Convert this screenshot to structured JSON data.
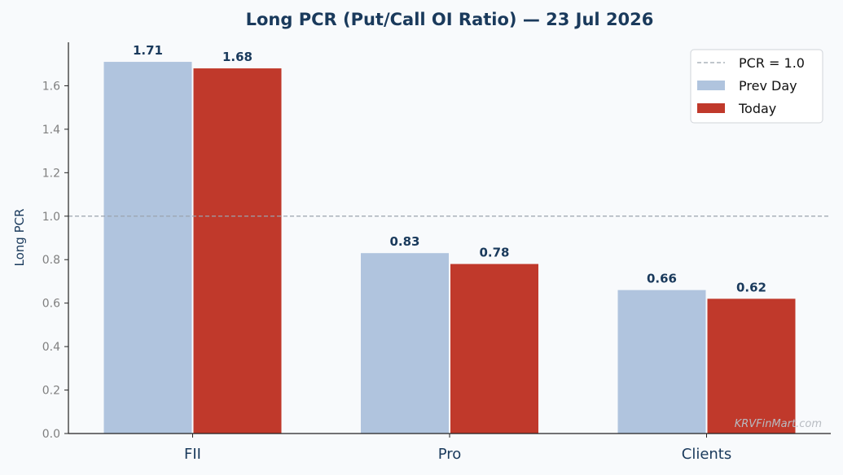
{
  "colors": {
    "background": "#f8fafc",
    "prev_day": "#b0c4de",
    "today": "#c0392b",
    "title": "#1a3a5c",
    "value_label": "#1a3a5c",
    "tick": "#7f7f7f",
    "axis": "#222222",
    "reference_line": "#9aa3ad",
    "watermark": "#b8bcc2"
  },
  "chart_data": {
    "type": "bar",
    "title": "Long PCR (Put/Call OI Ratio) — 23 Jul 2026",
    "xlabel": "",
    "ylabel": "Long PCR",
    "categories": [
      "FII",
      "Pro",
      "Clients"
    ],
    "series": [
      {
        "name": "Prev Day",
        "values": [
          1.71,
          0.83,
          0.66
        ],
        "labels": [
          "1.71",
          "0.83",
          "0.66"
        ],
        "color": "#b0c4de"
      },
      {
        "name": "Today",
        "values": [
          1.68,
          0.78,
          0.62
        ],
        "labels": [
          "1.68",
          "0.78",
          "0.62"
        ],
        "color": "#c0392b"
      }
    ],
    "ylim": [
      0,
      1.8
    ],
    "yticks": [
      0.0,
      0.2,
      0.4,
      0.6,
      0.8,
      1.0,
      1.2,
      1.4,
      1.6
    ],
    "ytick_labels": [
      "0.0",
      "0.2",
      "0.4",
      "0.6",
      "0.8",
      "1.0",
      "1.2",
      "1.4",
      "1.6"
    ],
    "reference_line": {
      "value": 1.0,
      "label": "PCR = 1.0",
      "style": "dashed"
    },
    "legend": {
      "placement": "top-right",
      "entries": [
        "PCR = 1.0",
        "Prev Day",
        "Today"
      ]
    },
    "grid": false,
    "watermark": "KRVFinMart.com"
  }
}
